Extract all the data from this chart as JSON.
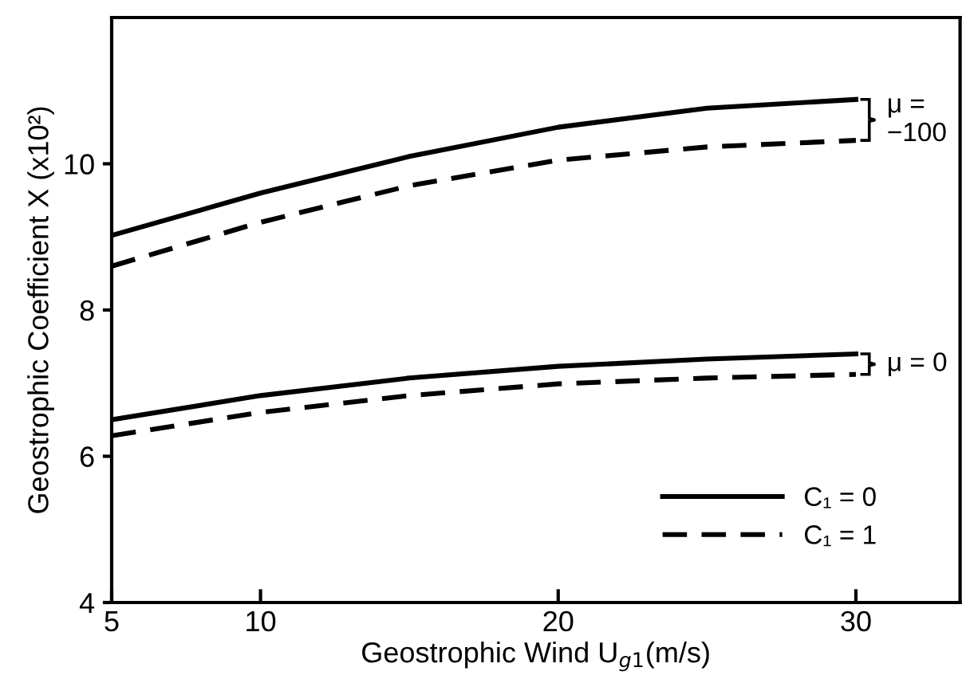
{
  "chart_data": {
    "type": "line",
    "xlabel": "Geostrophic Wind U$_{g1}$(m/s)",
    "ylabel": "Geostrophic Coefficient X (x10²)",
    "x": [
      5,
      10,
      15,
      20,
      25,
      30
    ],
    "series": [
      {
        "name": "C₁ = 0",
        "color": "#000000",
        "line_style": "solid",
        "values": [
          9.02,
          9.6,
          10.1,
          10.5,
          10.76,
          10.88
        ]
      },
      {
        "name": "C₁ = 1",
        "color": "#000000",
        "line_style": "dashed",
        "values": [
          8.6,
          9.2,
          9.7,
          10.05,
          10.23,
          10.32
        ]
      },
      {
        "color": "#000000",
        "line_style": "solid",
        "values": [
          6.5,
          6.83,
          7.07,
          7.23,
          7.33,
          7.4
        ]
      },
      {
        "color": "#000000",
        "line_style": "dashed",
        "values": [
          6.28,
          6.6,
          6.83,
          6.99,
          7.07,
          7.12
        ]
      }
    ],
    "annotations": [
      "μ =\n−100",
      "μ = 0"
    ],
    "xlim": [
      5,
      33.5
    ],
    "ylim": [
      4,
      12
    ],
    "xticks": [
      5,
      10,
      20,
      30
    ],
    "yticks": [
      4,
      6,
      8,
      10
    ],
    "grid": false,
    "legend": "bottom right",
    "marker": "none"
  }
}
